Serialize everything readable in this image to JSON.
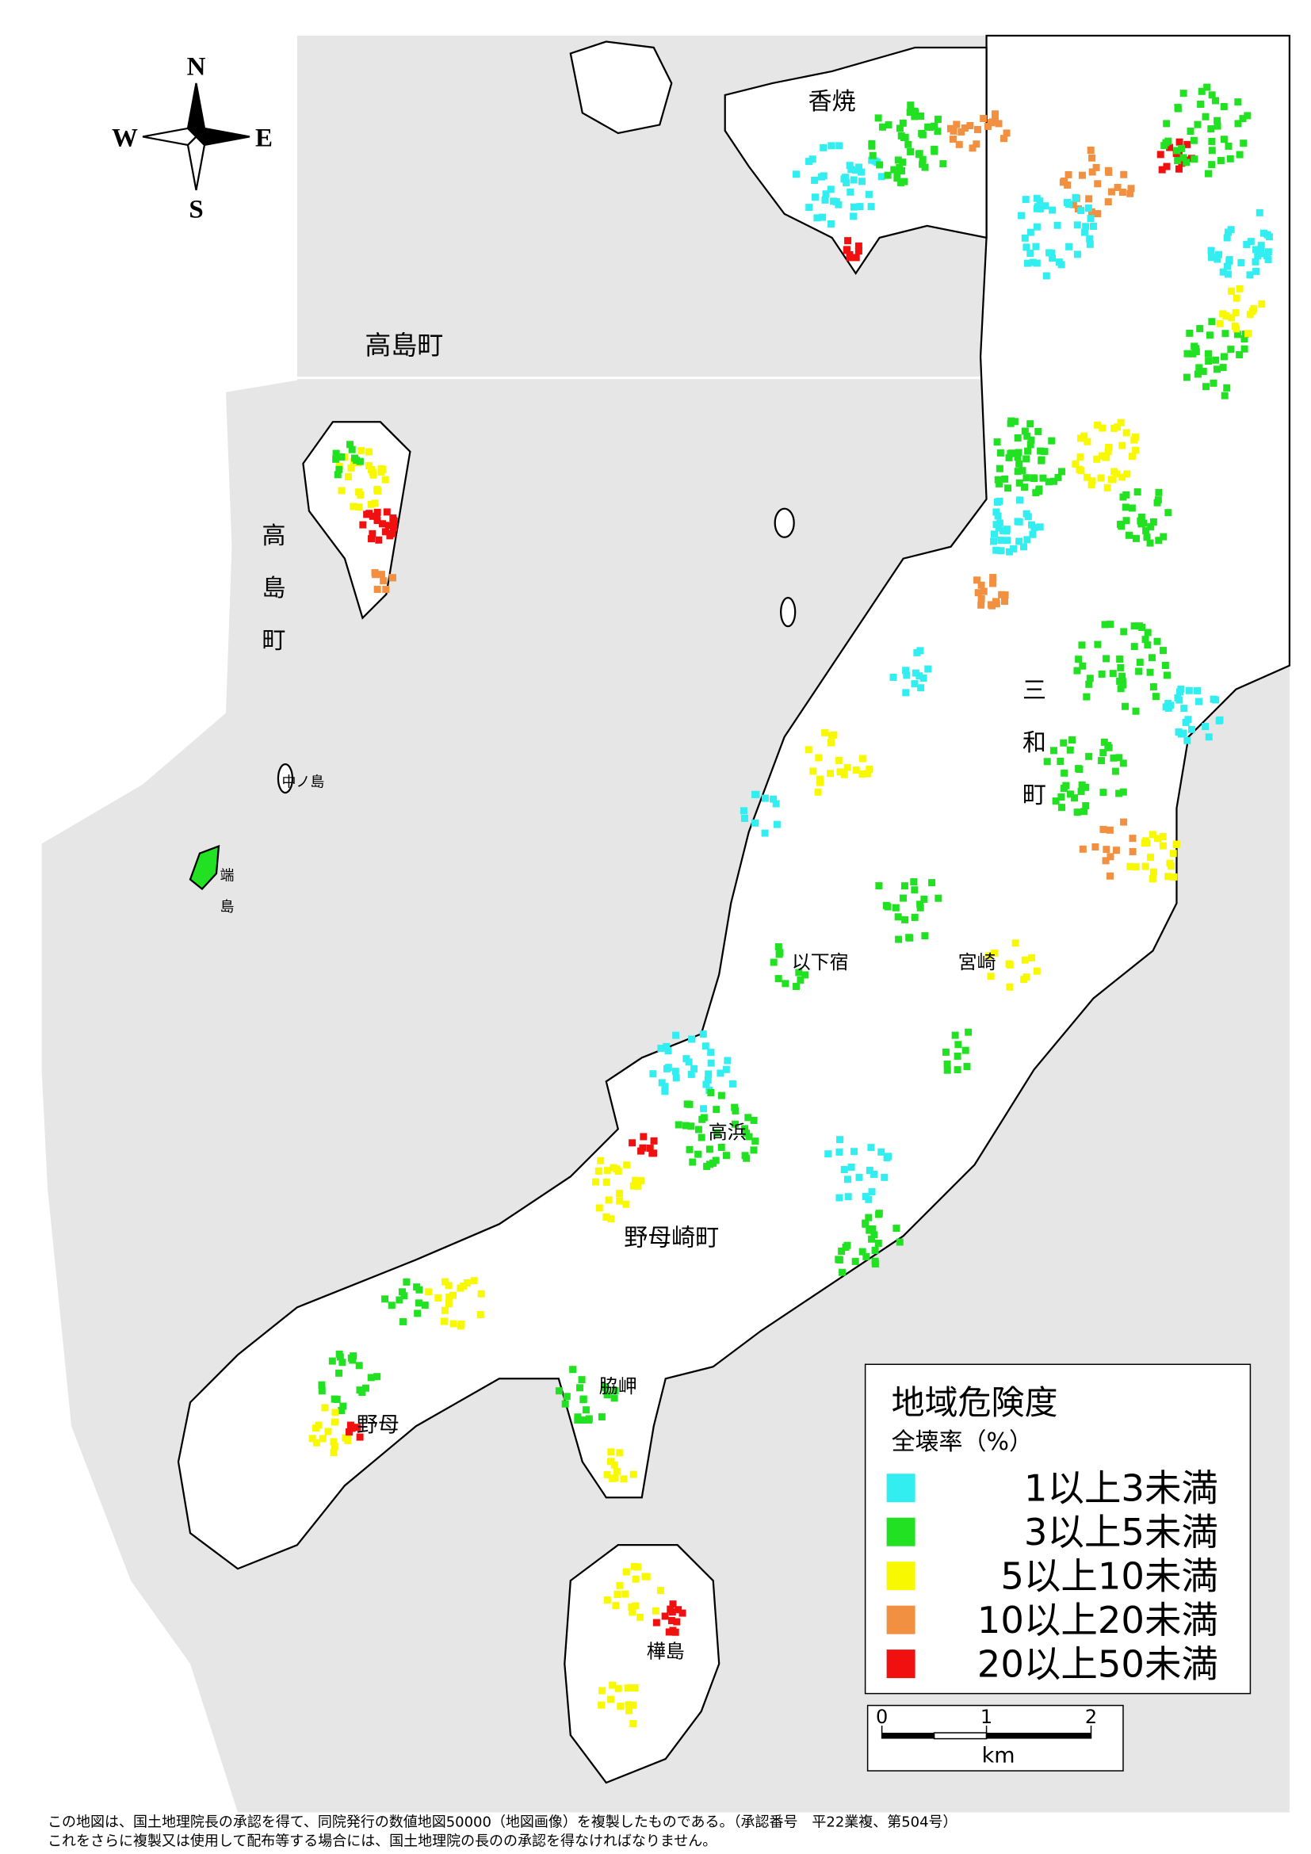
{
  "compass": {
    "n": "N",
    "s": "S",
    "e": "E",
    "w": "W"
  },
  "legend": {
    "title": "地域危険度",
    "subtitle": "全壊率（%）",
    "items": [
      {
        "label": "1以上3未満",
        "color": "#33eef0"
      },
      {
        "label": "3以上5未満",
        "color": "#22e022"
      },
      {
        "label": "5以上10未満",
        "color": "#f8f800"
      },
      {
        "label": "10以上20未満",
        "color": "#f09040"
      },
      {
        "label": "20以上50未満",
        "color": "#f01010"
      }
    ]
  },
  "scale_bar": {
    "ticks": [
      "0",
      "1",
      "2"
    ],
    "unit": "km"
  },
  "place_labels": [
    "高島町",
    "高島町",
    "香焼",
    "三和町",
    "以下宿",
    "宮崎",
    "高浜",
    "野母崎町",
    "脇岬",
    "野母",
    "樺島",
    "中ノ島",
    "端島"
  ],
  "footer": [
    "この地図は、国土地理院長の承認を得て、同院発行の数値地図50000（地図画像）を複製したものである。（承認番号　平22業複、第504号）",
    "これをさらに複製又は使用して配布等する場合には、国土地理院の長のの承認を得なければなりません。"
  ]
}
